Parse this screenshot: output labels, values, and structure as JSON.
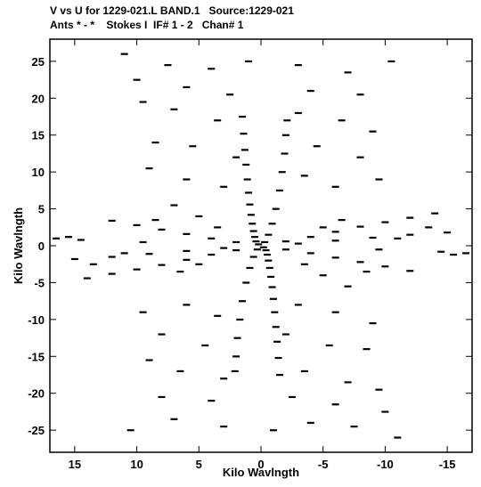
{
  "header": {
    "title_line1": "V vs U for 1229-021.L BAND.1   Source:1229-021",
    "title_line2": "Ants * - *    Stokes I  IF# 1 - 2   Chan# 1"
  },
  "chart_data": {
    "type": "scatter",
    "xlabel": "Kilo Wavlngth",
    "ylabel": "Kilo Wavlngth",
    "xlim": [
      17,
      -17
    ],
    "ylim": [
      -28,
      28
    ],
    "x_ticks": [
      15,
      10,
      5,
      0,
      -5,
      -10,
      -15
    ],
    "y_ticks": [
      25,
      20,
      15,
      10,
      5,
      0,
      -5,
      -10,
      -15,
      -20,
      -25
    ],
    "grid": false,
    "legend": "none",
    "marker_color": "#000000",
    "series": [
      {
        "points": [
          [
            0.2,
            0.2
          ],
          [
            0.4,
            0.6
          ],
          [
            0.5,
            1.2
          ],
          [
            0.6,
            2.0
          ],
          [
            0.7,
            3.0
          ],
          [
            0.8,
            4.2
          ],
          [
            0.9,
            5.6
          ],
          [
            1.0,
            7.2
          ],
          [
            1.1,
            9.0
          ],
          [
            1.2,
            11.0
          ],
          [
            1.3,
            13.0
          ],
          [
            1.4,
            15.2
          ],
          [
            1.5,
            17.5
          ],
          [
            -0.2,
            -0.2
          ],
          [
            -0.4,
            -0.6
          ],
          [
            -0.5,
            -1.2
          ],
          [
            -0.6,
            -2.0
          ],
          [
            -0.7,
            -3.0
          ],
          [
            -0.8,
            -4.2
          ],
          [
            -0.9,
            -5.6
          ],
          [
            -1.0,
            -7.2
          ],
          [
            -1.1,
            -9.0
          ],
          [
            -1.2,
            -11.0
          ],
          [
            -1.3,
            -13.0
          ],
          [
            -1.4,
            -15.2
          ],
          [
            -1.5,
            -17.5
          ],
          [
            -0.3,
            0.5
          ],
          [
            -0.6,
            1.5
          ],
          [
            -0.9,
            3.0
          ],
          [
            -1.2,
            5.0
          ],
          [
            -1.5,
            7.5
          ],
          [
            -1.7,
            10.0
          ],
          [
            -1.9,
            12.5
          ],
          [
            -2.0,
            15.0
          ],
          [
            -2.1,
            17.0
          ],
          [
            0.3,
            -0.5
          ],
          [
            0.6,
            -1.5
          ],
          [
            0.9,
            -3.0
          ],
          [
            1.2,
            -5.0
          ],
          [
            1.5,
            -7.5
          ],
          [
            1.7,
            -10.0
          ],
          [
            1.9,
            -12.5
          ],
          [
            2.0,
            -15.0
          ],
          [
            2.1,
            -17.0
          ],
          [
            2.0,
            0.5
          ],
          [
            4.0,
            1.0
          ],
          [
            6.0,
            1.6
          ],
          [
            8.0,
            2.2
          ],
          [
            10.0,
            2.8
          ],
          [
            12.0,
            3.4
          ],
          [
            -2.0,
            -0.5
          ],
          [
            -4.0,
            -1.0
          ],
          [
            -6.0,
            -1.6
          ],
          [
            -8.0,
            -2.2
          ],
          [
            -10.0,
            -2.8
          ],
          [
            -12.0,
            -3.4
          ],
          [
            2.0,
            -0.6
          ],
          [
            4.0,
            -1.2
          ],
          [
            6.0,
            -1.9
          ],
          [
            8.0,
            -2.6
          ],
          [
            10.0,
            -3.2
          ],
          [
            12.0,
            -3.8
          ],
          [
            14.0,
            -4.4
          ],
          [
            -2.0,
            0.6
          ],
          [
            -4.0,
            1.2
          ],
          [
            -6.0,
            1.9
          ],
          [
            -8.0,
            2.6
          ],
          [
            -10.0,
            3.2
          ],
          [
            -12.0,
            3.8
          ],
          [
            -14.0,
            4.4
          ],
          [
            3.0,
            -0.3
          ],
          [
            6.0,
            -0.7
          ],
          [
            9.0,
            -1.1
          ],
          [
            12.0,
            -1.5
          ],
          [
            15.0,
            -1.8
          ],
          [
            -3.0,
            0.3
          ],
          [
            -6.0,
            0.7
          ],
          [
            -9.0,
            1.1
          ],
          [
            -12.0,
            1.5
          ],
          [
            -15.0,
            1.8
          ],
          [
            3.5,
            2.5
          ],
          [
            5.0,
            4.0
          ],
          [
            7.0,
            5.5
          ],
          [
            8.5,
            3.5
          ],
          [
            9.5,
            0.5
          ],
          [
            11.0,
            -1.0
          ],
          [
            13.5,
            -2.5
          ],
          [
            6.5,
            -3.5
          ],
          [
            5.0,
            -2.5
          ],
          [
            -3.5,
            -2.5
          ],
          [
            -5.0,
            -4.0
          ],
          [
            -7.0,
            -5.5
          ],
          [
            -8.5,
            -3.5
          ],
          [
            -9.5,
            -0.5
          ],
          [
            -11.0,
            1.0
          ],
          [
            -13.5,
            2.5
          ],
          [
            -6.5,
            3.5
          ],
          [
            -5.0,
            2.5
          ],
          [
            14.5,
            0.8
          ],
          [
            15.5,
            1.2
          ],
          [
            16.5,
            1.0
          ],
          [
            -14.5,
            -0.8
          ],
          [
            -15.5,
            -1.2
          ],
          [
            -16.5,
            -1.0
          ],
          [
            3.0,
            8.0
          ],
          [
            6.0,
            9.0
          ],
          [
            9.0,
            10.5
          ],
          [
            2.0,
            12.0
          ],
          [
            5.5,
            13.5
          ],
          [
            8.5,
            14.0
          ],
          [
            3.5,
            17.0
          ],
          [
            7.0,
            18.5
          ],
          [
            9.5,
            19.5
          ],
          [
            2.5,
            20.5
          ],
          [
            6.0,
            21.5
          ],
          [
            10.0,
            22.5
          ],
          [
            4.0,
            24.0
          ],
          [
            7.5,
            24.5
          ],
          [
            11.0,
            26.0
          ],
          [
            1.0,
            25.0
          ],
          [
            -3.0,
            24.5
          ],
          [
            -7.0,
            23.5
          ],
          [
            -10.5,
            25.0
          ],
          [
            -4.0,
            21.0
          ],
          [
            -8.0,
            20.5
          ],
          [
            -3.0,
            18.0
          ],
          [
            -6.5,
            17.0
          ],
          [
            -9.0,
            15.5
          ],
          [
            -4.5,
            13.5
          ],
          [
            -8.0,
            12.0
          ],
          [
            -3.5,
            9.5
          ],
          [
            -6.0,
            8.0
          ],
          [
            -9.5,
            9.0
          ],
          [
            -3.0,
            -8.0
          ],
          [
            -6.0,
            -9.0
          ],
          [
            -9.0,
            -10.5
          ],
          [
            -2.0,
            -12.0
          ],
          [
            -5.5,
            -13.5
          ],
          [
            -8.5,
            -14.0
          ],
          [
            -3.5,
            -17.0
          ],
          [
            -7.0,
            -18.5
          ],
          [
            -9.5,
            -19.5
          ],
          [
            -2.5,
            -20.5
          ],
          [
            -6.0,
            -21.5
          ],
          [
            -10.0,
            -22.5
          ],
          [
            -4.0,
            -24.0
          ],
          [
            -7.5,
            -24.5
          ],
          [
            -11.0,
            -26.0
          ],
          [
            -1.0,
            -25.0
          ],
          [
            3.0,
            -24.5
          ],
          [
            7.0,
            -23.5
          ],
          [
            10.5,
            -25.0
          ],
          [
            4.0,
            -21.0
          ],
          [
            8.0,
            -20.5
          ],
          [
            3.0,
            -18.0
          ],
          [
            6.5,
            -17.0
          ],
          [
            9.0,
            -15.5
          ],
          [
            4.5,
            -13.5
          ],
          [
            8.0,
            -12.0
          ],
          [
            3.5,
            -9.5
          ],
          [
            6.0,
            -8.0
          ],
          [
            9.5,
            -9.0
          ]
        ]
      }
    ]
  }
}
